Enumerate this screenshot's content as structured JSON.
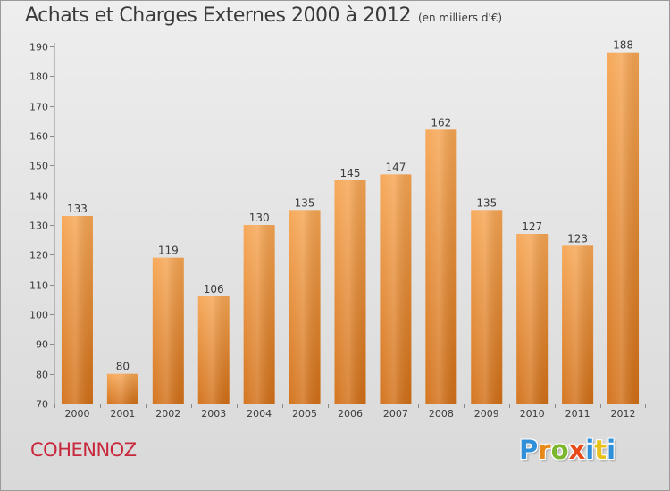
{
  "title": "Achats et Charges Externes 2000 à 2012",
  "subtitle": "(en milliers d'€)",
  "commune": "COHENNOZ",
  "logo": {
    "letters": [
      "P",
      "r",
      "o",
      "x",
      "i",
      "t",
      "i"
    ],
    "colors": [
      "#2f8fd8",
      "#e88a1a",
      "#7cb82f",
      "#e84a1a",
      "#2f8fd8",
      "#e8c21a",
      "#2f8fd8"
    ]
  },
  "colors": {
    "bar_top": "#f6a552",
    "bar_bottom": "#d26f16",
    "commune": "#c8283c",
    "text": "#3a3a3a"
  },
  "chart_data": {
    "type": "bar",
    "categories": [
      "2000",
      "2001",
      "2002",
      "2003",
      "2004",
      "2005",
      "2006",
      "2007",
      "2008",
      "2009",
      "2010",
      "2011",
      "2012"
    ],
    "values": [
      133,
      80,
      119,
      106,
      130,
      135,
      145,
      147,
      162,
      135,
      127,
      123,
      188
    ],
    "ylim": [
      70,
      190
    ],
    "yticks": [
      70,
      80,
      90,
      100,
      110,
      120,
      130,
      140,
      150,
      160,
      170,
      180,
      190
    ],
    "grid": false,
    "data_labels": true
  }
}
